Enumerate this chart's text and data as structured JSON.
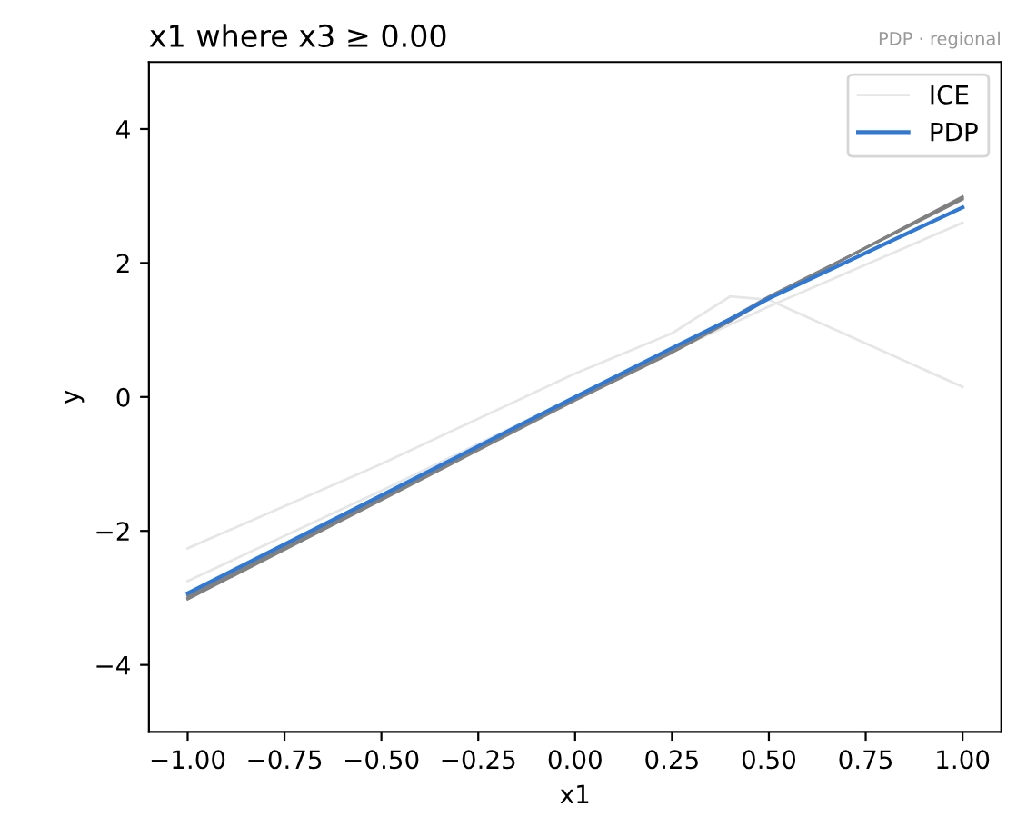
{
  "chart_data": {
    "type": "line",
    "title": "x1 where x3 ≥ 0.00",
    "xlabel": "x1",
    "ylabel": "y",
    "annotations": [
      "PDP · regional"
    ],
    "xlim": [
      -1.1,
      1.1
    ],
    "ylim": [
      -5,
      5
    ],
    "xticks": [
      {
        "value": -1,
        "label": "−1.00"
      },
      {
        "value": -0.75,
        "label": "−0.75"
      },
      {
        "value": -0.5,
        "label": "−0.50"
      },
      {
        "value": -0.25,
        "label": "−0.25"
      },
      {
        "value": 0,
        "label": "0.00"
      },
      {
        "value": 0.25,
        "label": "0.25"
      },
      {
        "value": 0.5,
        "label": "0.50"
      },
      {
        "value": 0.75,
        "label": "0.75"
      },
      {
        "value": 1,
        "label": "1.00"
      }
    ],
    "yticks": [
      {
        "value": -4,
        "label": "−4"
      },
      {
        "value": -2,
        "label": "−2"
      },
      0,
      2,
      4
    ],
    "x": [
      -1,
      -0.5,
      0,
      0.25,
      0.4,
      0.5,
      1
    ],
    "grid": false,
    "legend": "top right",
    "marker": "none",
    "line_style": "solid",
    "series": [
      {
        "name": "ICE",
        "color": "#e6e6e6",
        "values": [
          -2.26,
          -1.0,
          0.35,
          0.95,
          1.5,
          1.45,
          0.15
        ]
      },
      {
        "color": "#e6e6e6",
        "values": [
          -2.75,
          -1.4,
          0.0,
          0.68,
          1.08,
          1.35,
          2.6
        ]
      },
      {
        "color": "#808080",
        "values": [
          -3.0,
          -1.52,
          -0.03,
          0.68,
          1.15,
          1.48,
          2.97
        ]
      },
      {
        "color": "#808080",
        "values": [
          -2.97,
          -1.5,
          -0.01,
          0.72,
          1.17,
          1.5,
          2.95
        ]
      },
      {
        "color": "#808080",
        "values": [
          -3.02,
          -1.54,
          -0.05,
          0.66,
          1.13,
          1.47,
          2.99
        ]
      },
      {
        "name": "PDP",
        "color": "#2f78d3",
        "values": [
          -2.93,
          -1.47,
          0.0,
          0.73,
          1.16,
          1.47,
          2.83
        ]
      }
    ]
  }
}
